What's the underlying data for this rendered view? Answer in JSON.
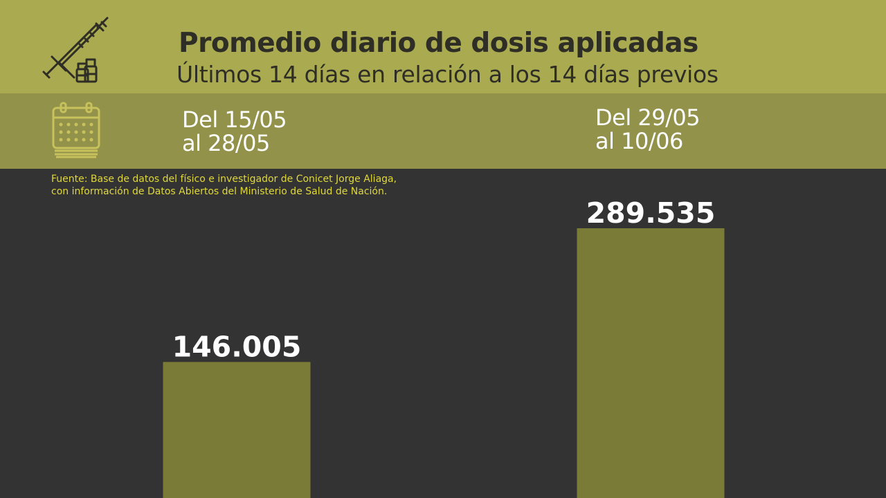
{
  "header": {
    "title": "Promedio diario de dosis aplicadas",
    "subtitle": "Últimos 14 días en relación a los 14 días previos"
  },
  "periods": [
    {
      "line1": "Del 15/05",
      "line2": "al 28/05"
    },
    {
      "line1": "Del 29/05",
      "line2": "al 10/06"
    }
  ],
  "source": {
    "line1": "Fuente: Base de datos del físico e investigador de Conicet Jorge Aliaga,",
    "line2": "con información de Datos Abiertos del Ministerio de Salud de Nación."
  },
  "icons": {
    "header": "syringe-vials-icon",
    "subheader": "calendar-icon"
  },
  "colors": {
    "header_bg": "#aaaa50",
    "subheader_bg": "#92924a",
    "background": "#333333",
    "bar": "#7b7b38",
    "source_text": "#e0d83a"
  },
  "chart_data": {
    "type": "bar",
    "categories": [
      "Del 15/05 al 28/05",
      "Del 29/05 al 10/06"
    ],
    "values": [
      146005,
      289535
    ],
    "value_labels": [
      "146.005",
      "289.535"
    ]
  }
}
